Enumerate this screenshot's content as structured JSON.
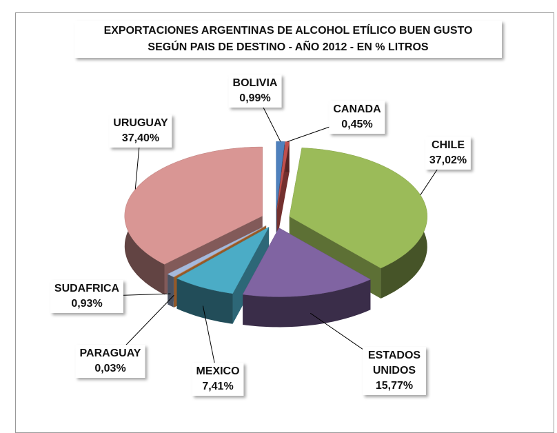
{
  "chart_data": {
    "type": "pie",
    "title": [
      "EXPORTACIONES ARGENTINAS DE ALCOHOL ETÍLICO BUEN GUSTO",
      "SEGÚN PAIS DE DESTINO  - AÑO 2012  - EN % LITROS"
    ],
    "categories": [
      "BOLIVIA",
      "CANADA",
      "CHILE",
      "ESTADOS UNIDOS",
      "MEXICO",
      "PARAGUAY",
      "SUDAFRICA",
      "URUGUAY"
    ],
    "values": [
      0.99,
      0.45,
      37.02,
      15.77,
      7.41,
      0.03,
      0.93,
      37.4
    ],
    "value_labels": [
      "0,99%",
      "0,45%",
      "37,02%",
      "15,77%",
      "7,41%",
      "0,03%",
      "0,93%",
      "37,40%"
    ],
    "colors": [
      "#4f81bd",
      "#c0504d",
      "#9bbb59",
      "#8064a2",
      "#4bacc6",
      "#f79646",
      "#a5b9dc",
      "#d99694"
    ]
  }
}
